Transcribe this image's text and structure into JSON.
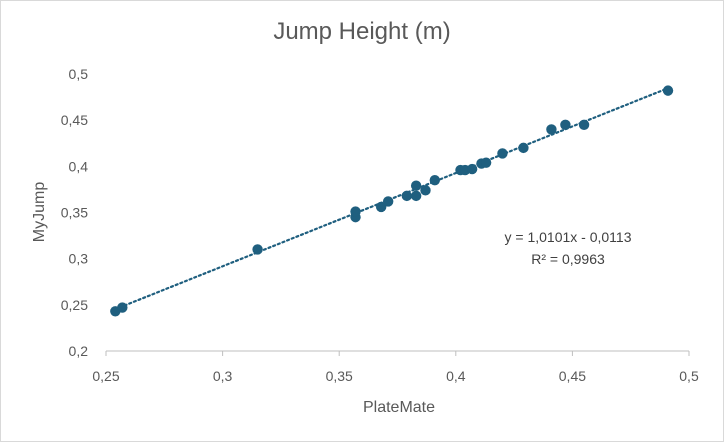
{
  "chart_data": {
    "type": "scatter",
    "title": "Jump Height (m)",
    "xlabel": "PlateMate",
    "ylabel": "MyJump",
    "xlim": [
      0.25,
      0.5
    ],
    "ylim": [
      0.2,
      0.5
    ],
    "x_ticks": [
      "0,25",
      "0,3",
      "0,35",
      "0,4",
      "0,45",
      "0,5"
    ],
    "y_ticks": [
      "0,2",
      "0,25",
      "0,3",
      "0,35",
      "0,4",
      "0,45",
      "0,5"
    ],
    "grid": false,
    "legend": false,
    "marker_color": "#1f5f7f",
    "trendline": {
      "type": "linear",
      "style": "dotted",
      "slope": 1.0101,
      "intercept": -0.0113,
      "equation": "y = 1,0101x - 0,0113",
      "r2_label": "R² = 0,9963"
    },
    "points": [
      {
        "x": 0.254,
        "y": 0.243
      },
      {
        "x": 0.257,
        "y": 0.247
      },
      {
        "x": 0.315,
        "y": 0.31
      },
      {
        "x": 0.357,
        "y": 0.345
      },
      {
        "x": 0.357,
        "y": 0.351
      },
      {
        "x": 0.368,
        "y": 0.356
      },
      {
        "x": 0.371,
        "y": 0.362
      },
      {
        "x": 0.379,
        "y": 0.368
      },
      {
        "x": 0.383,
        "y": 0.368
      },
      {
        "x": 0.383,
        "y": 0.379
      },
      {
        "x": 0.387,
        "y": 0.374
      },
      {
        "x": 0.391,
        "y": 0.385
      },
      {
        "x": 0.402,
        "y": 0.396
      },
      {
        "x": 0.404,
        "y": 0.396
      },
      {
        "x": 0.407,
        "y": 0.397
      },
      {
        "x": 0.411,
        "y": 0.403
      },
      {
        "x": 0.413,
        "y": 0.404
      },
      {
        "x": 0.42,
        "y": 0.414
      },
      {
        "x": 0.429,
        "y": 0.42
      },
      {
        "x": 0.441,
        "y": 0.44
      },
      {
        "x": 0.447,
        "y": 0.445
      },
      {
        "x": 0.455,
        "y": 0.445
      },
      {
        "x": 0.491,
        "y": 0.482
      }
    ]
  }
}
